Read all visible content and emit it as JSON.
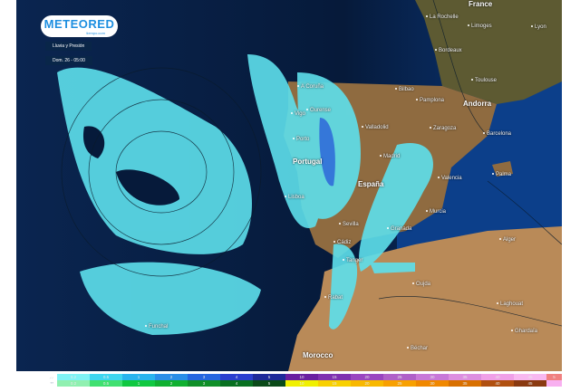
{
  "brand": {
    "name": "METEORED",
    "sub": "tiempo.com"
  },
  "product": "Lluvia y Presión",
  "valid_time": "Dom. 26 - 05:00",
  "countries": [
    "France",
    "Portugal",
    "España",
    "Andorra",
    "Morocco"
  ],
  "cities": [
    "La Rochelle",
    "Limoges",
    "Lyon",
    "Bordeaux",
    "Toulouse",
    "Bilbao",
    "Pamplona",
    "A Coruña",
    "Ourense",
    "Vigo",
    "Porto",
    "Valladolid",
    "Zaragoza",
    "Barcelona",
    "Madrid",
    "Lisboa",
    "Valencia",
    "Palma",
    "Murcia",
    "Sevilla",
    "Granada",
    "Cádiz",
    "Tanger",
    "Alger",
    "Oujda",
    "Rabat",
    "Laghouat",
    "Ghardaïa",
    "Béchar",
    "Funchal"
  ],
  "legend": {
    "rain": {
      "icon": "rain-icon",
      "first": "⸝⸝",
      "values": [
        "0.2",
        "0.5",
        "1",
        "2",
        "3",
        "4",
        "5",
        "10",
        "15",
        "20",
        "25",
        "30",
        "35",
        "40",
        "45",
        "5"
      ],
      "colors": [
        "#7ff3f5",
        "#3ed6f0",
        "#29b4ee",
        "#2a8ee8",
        "#2566e0",
        "#2a3fd0",
        "#1e2a9a",
        "#6a1fa0",
        "#8030b0",
        "#9a45c0",
        "#b060c8",
        "#c878d8",
        "#dd8ee0",
        "#f0a0e8",
        "#f8b8f0",
        "#f08080"
      ]
    },
    "snow": {
      "icon": "snow-icon",
      "first": "**",
      "values": [
        "0.2",
        "0.5",
        "1",
        "2",
        "3",
        "4",
        "5",
        "10",
        "15",
        "20",
        "25",
        "30",
        "35",
        "40",
        "45",
        ""
      ],
      "colors": [
        "#90f0b0",
        "#40e070",
        "#10c840",
        "#10b030",
        "#109028",
        "#087020",
        "#0a4a18",
        "#f0f000",
        "#f8d000",
        "#f8b800",
        "#f8a000",
        "#f08800",
        "#d87000",
        "#b05010",
        "#8a3a10",
        "#f8b0f0"
      ]
    }
  },
  "colors": {
    "ocean_deep": "#061a3a",
    "ocean_shelf": "#0c3f8a",
    "land": "#a57a4a",
    "land_green": "#5a5a30",
    "rain_light": "#5ee0ec"
  }
}
